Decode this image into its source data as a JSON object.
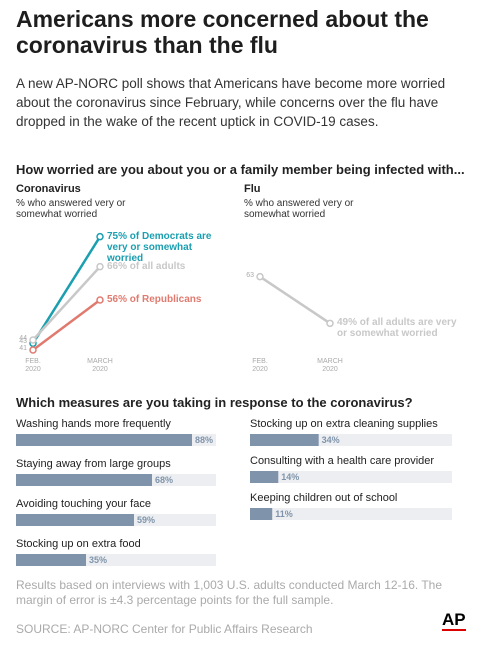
{
  "header": {
    "title": "Americans more concerned about the coronavirus than the flu",
    "subtitle": "A new AP-NORC poll shows that Americans have become more worried about the coronavirus since February, while concerns over the flu have dropped in the wake of the recent uptick in COVID-19 cases."
  },
  "section_1": "How worried are you about you or a family member being infected with...",
  "section_2": "Which measures are you taking in response to the coronavirus?",
  "chart_data": [
    {
      "type": "line",
      "title": "Coronavirus",
      "subtitle": "% who answered very or somewhat worried",
      "categories": [
        "FEB. 2020",
        "MARCH 2020"
      ],
      "ylim": [
        35,
        80
      ],
      "series": [
        {
          "name": "Democrats",
          "color": "#1a9fb0",
          "values": [
            43,
            75
          ],
          "value_labels": [
            "43",
            "75% of Democrats are very or somewhat worried"
          ]
        },
        {
          "name": "All adults",
          "color": "#c8c8c8",
          "values": [
            44,
            66
          ],
          "value_labels": [
            "44",
            "66% of all adults"
          ]
        },
        {
          "name": "Republicans",
          "color": "#e07a6f",
          "values": [
            41,
            56
          ],
          "value_labels": [
            "41",
            "56% of Republicans"
          ]
        }
      ]
    },
    {
      "type": "line",
      "title": "Flu",
      "subtitle": "% who answered very or somewhat worried",
      "categories": [
        "FEB. 2020",
        "MARCH 2020"
      ],
      "ylim": [
        35,
        80
      ],
      "series": [
        {
          "name": "All adults",
          "color": "#c8c8c8",
          "values": [
            63,
            49
          ],
          "value_labels": [
            "63",
            "49% of all adults are very or somewhat worried"
          ]
        }
      ]
    },
    {
      "type": "bar",
      "categories": [
        "Washing hands more frequently",
        "Staying away from large groups",
        "Avoiding touching your face",
        "Stocking up on extra food",
        "Stocking up on extra cleaning supplies",
        "Consulting with a health care provider",
        "Keeping children out of school"
      ],
      "values": [
        88,
        68,
        59,
        35,
        34,
        14,
        11
      ],
      "value_labels": [
        "88%",
        "68%",
        "59%",
        "35%",
        "34%",
        "14%",
        "11%"
      ],
      "xlim": [
        0,
        100
      ],
      "color": "#7f94ab",
      "track_color": "#eceef1"
    }
  ],
  "footer": {
    "note": "Results based on interviews with 1,003 U.S. adults conducted March 12-16. The margin of error is ±4.3 percentage points for the full sample.",
    "source": "SOURCE: AP-NORC Center for Public Affairs Research",
    "logo": "AP"
  }
}
